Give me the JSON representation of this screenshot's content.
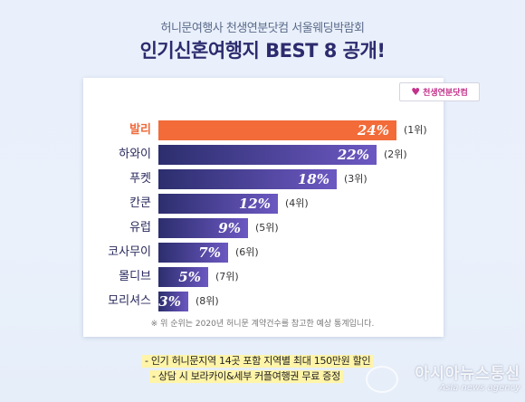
{
  "header": {
    "subtitle": "허니문여행사 천생연분닷컴 서울웨딩박람회",
    "title": "인기신혼여행지 BEST 8 공개!"
  },
  "logo": {
    "text": "천생연분닷컴",
    "accent": "#6e3fb0",
    "brand": "#c4318b"
  },
  "chart_data": {
    "type": "bar",
    "orientation": "horizontal",
    "categories": [
      "발리",
      "하와이",
      "푸켓",
      "칸쿤",
      "유럽",
      "코사무이",
      "몰디브",
      "모리셔스"
    ],
    "values": [
      24,
      22,
      18,
      12,
      9,
      7,
      5,
      3
    ],
    "value_labels": [
      "24%",
      "22%",
      "18%",
      "12%",
      "9%",
      "7%",
      "5%",
      "3%"
    ],
    "ranks": [
      "(1위)",
      "(2위)",
      "(3위)",
      "(4위)",
      "(5위)",
      "(6위)",
      "(7위)",
      "(8위)"
    ],
    "xlim": [
      0,
      24
    ],
    "grid": false,
    "colors": {
      "first_bar": "#f26b38",
      "bar_gradient_left": "#2c2e6e",
      "bar_gradient_right": "#6c58c2"
    }
  },
  "note": "※ 위 순위는 2020년 허니문 계약건수를 참고한 예상 통계입니다.",
  "promos": [
    "- 인기 허니문지역 14곳 포함 지역별 최대 150만원 할인",
    "- 상담 시 보라카이&세부 커플여행권 무료 증정"
  ],
  "watermark": {
    "main": "아시아뉴스통신",
    "sub": "Asia news agency"
  }
}
